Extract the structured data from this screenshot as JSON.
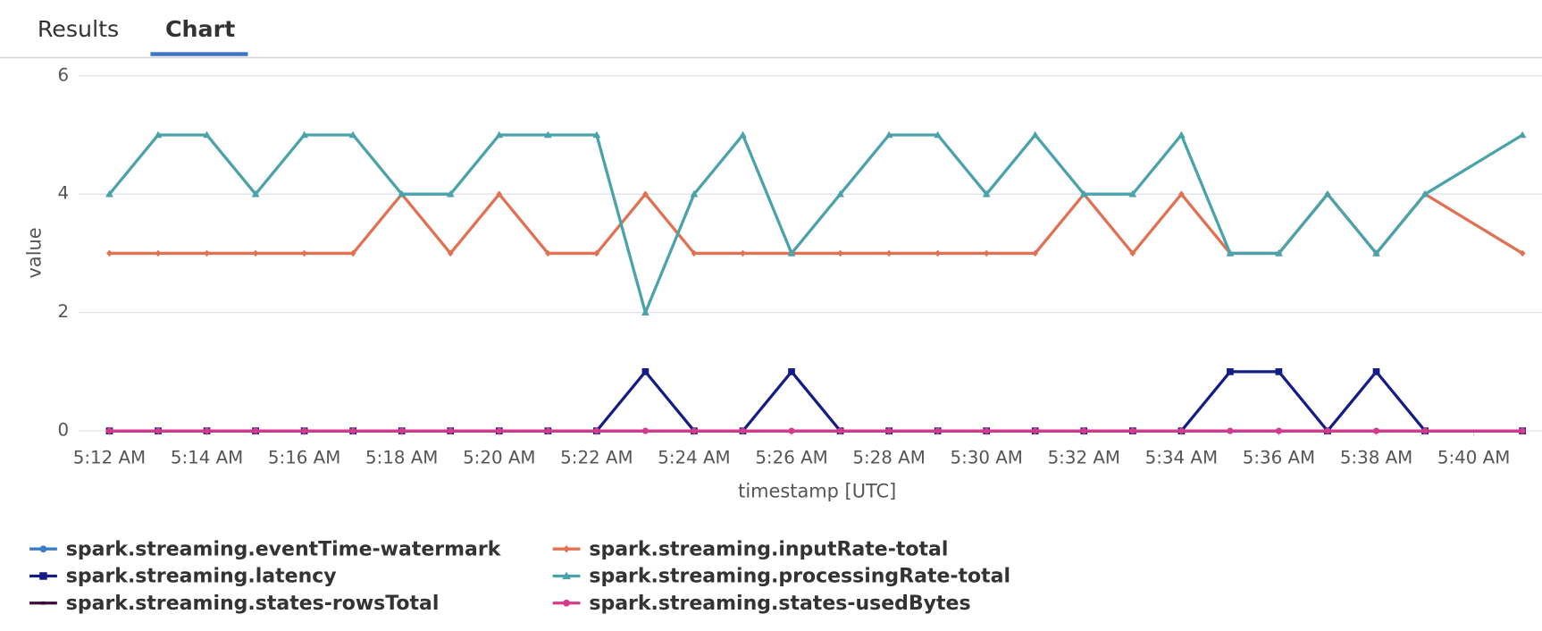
{
  "tabs": [
    "Results",
    "Chart"
  ],
  "chart_data": {
    "type": "line",
    "xlabel": "timestamp [UTC]",
    "ylabel": "value",
    "x": [
      12,
      13,
      14,
      15,
      16,
      17,
      18,
      19,
      20,
      21,
      22,
      23,
      24,
      25,
      26,
      27,
      28,
      29,
      30,
      31,
      32,
      33,
      34,
      35,
      36,
      37,
      38,
      39,
      41
    ],
    "xlim": [
      11.37,
      41.4
    ],
    "xticks": [
      {
        "value": 12,
        "label": "5:12 AM"
      },
      {
        "value": 14,
        "label": "5:14 AM"
      },
      {
        "value": 16,
        "label": "5:16 AM"
      },
      {
        "value": 18,
        "label": "5:18 AM"
      },
      {
        "value": 20,
        "label": "5:20 AM"
      },
      {
        "value": 22,
        "label": "5:22 AM"
      },
      {
        "value": 24,
        "label": "5:24 AM"
      },
      {
        "value": 26,
        "label": "5:26 AM"
      },
      {
        "value": 28,
        "label": "5:28 AM"
      },
      {
        "value": 30,
        "label": "5:30 AM"
      },
      {
        "value": 32,
        "label": "5:32 AM"
      },
      {
        "value": 34,
        "label": "5:34 AM"
      },
      {
        "value": 36,
        "label": "5:36 AM"
      },
      {
        "value": 38,
        "label": "5:38 AM"
      },
      {
        "value": 40,
        "label": "5:40 AM"
      }
    ],
    "ylim": [
      0,
      6
    ],
    "yticks": [
      0,
      2,
      4,
      6
    ],
    "grid": true,
    "series": [
      {
        "name": "spark.streaming.eventTime-watermark",
        "color": "#3b7cc4",
        "marker": "circle",
        "values": [
          0,
          0,
          0,
          0,
          0,
          0,
          0,
          0,
          0,
          0,
          0,
          0,
          0,
          0,
          0,
          0,
          0,
          0,
          0,
          0,
          0,
          0,
          0,
          0,
          0,
          0,
          0,
          0,
          0
        ]
      },
      {
        "name": "spark.streaming.inputRate-total",
        "color": "#e07152",
        "marker": "diamond",
        "values": [
          3,
          3,
          3,
          3,
          3,
          3,
          4,
          3,
          4,
          3,
          3,
          4,
          3,
          3,
          3,
          3,
          3,
          3,
          3,
          3,
          4,
          3,
          4,
          3,
          3,
          4,
          3,
          4,
          3
        ]
      },
      {
        "name": "spark.streaming.latency",
        "color": "#141c86",
        "marker": "square",
        "values": [
          0,
          0,
          0,
          0,
          0,
          0,
          0,
          0,
          0,
          0,
          0,
          1,
          0,
          0,
          1,
          0,
          0,
          0,
          0,
          0,
          0,
          0,
          0,
          1,
          1,
          0,
          1,
          0,
          0
        ]
      },
      {
        "name": "spark.streaming.processingRate-total",
        "color": "#4aa3aa",
        "marker": "triangle",
        "values": [
          4,
          5,
          5,
          4,
          5,
          5,
          4,
          4,
          5,
          5,
          5,
          2,
          4,
          5,
          3,
          4,
          5,
          5,
          4,
          5,
          4,
          4,
          5,
          3,
          3,
          4,
          3,
          4,
          5
        ]
      },
      {
        "name": "spark.streaming.states-rowsTotal",
        "color": "#3a0a3c",
        "marker": "line",
        "values": [
          0,
          0,
          0,
          0,
          0,
          0,
          0,
          0,
          0,
          0,
          0,
          0,
          0,
          0,
          0,
          0,
          0,
          0,
          0,
          0,
          0,
          0,
          0,
          0,
          0,
          0,
          0,
          0,
          0
        ]
      },
      {
        "name": "spark.streaming.states-usedBytes",
        "color": "#d63a8c",
        "marker": "circle",
        "values": [
          0,
          0,
          0,
          0,
          0,
          0,
          0,
          0,
          0,
          0,
          0,
          0,
          0,
          0,
          0,
          0,
          0,
          0,
          0,
          0,
          0,
          0,
          0,
          0,
          0,
          0,
          0,
          0,
          0
        ]
      }
    ]
  }
}
